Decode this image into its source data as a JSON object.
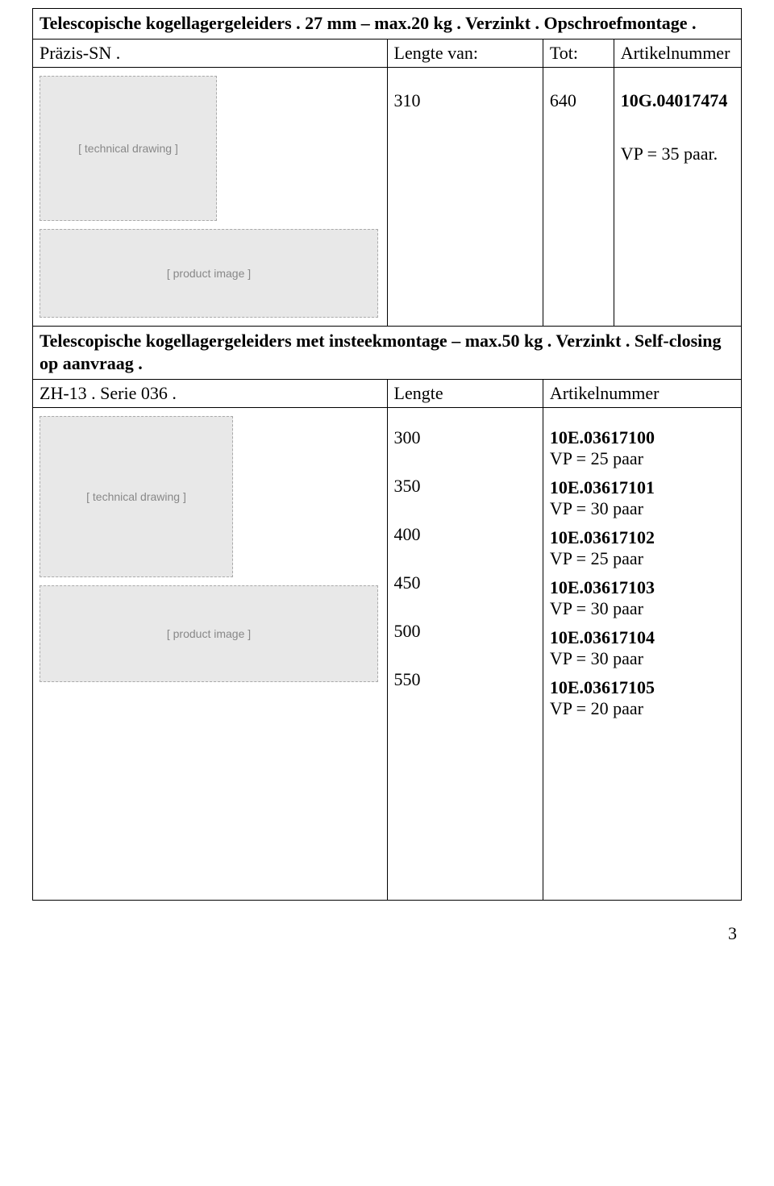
{
  "section1": {
    "title": "Telescopische kogellagergeleiders . 27 mm – max.20 kg . Verzinkt . Opschroefmontage .",
    "row_label": "Präzis-SN .",
    "col_b": "Lengte van:",
    "col_c_a": "Tot:",
    "col_c_b": "Artikelnummer",
    "val_from": "310",
    "val_to": "640",
    "article": "10G.04017474",
    "vp": "VP = 35 paar."
  },
  "section2": {
    "title": "Telescopische kogellagergeleiders met insteekmontage – max.50 kg . Verzinkt . Self-closing op aanvraag .",
    "row_label": "ZH-13 . Serie 036 .",
    "col_b": "Lengte",
    "col_c": "Artikelnummer",
    "lengths": [
      "300",
      "350",
      "400",
      "450",
      "500",
      "550"
    ],
    "articles": [
      {
        "code": "10E.03617100",
        "vp": "VP = 25 paar"
      },
      {
        "code": "10E.03617101",
        "vp": "VP = 30 paar"
      },
      {
        "code": "10E.03617102",
        "vp": "VP = 25 paar"
      },
      {
        "code": "10E.03617103",
        "vp": "VP = 30 paar"
      },
      {
        "code": "10E.03617104",
        "vp": "VP = 30 paar"
      },
      {
        "code": "10E.03617105",
        "vp": "VP = 20 paar"
      }
    ]
  },
  "page_number": "3"
}
